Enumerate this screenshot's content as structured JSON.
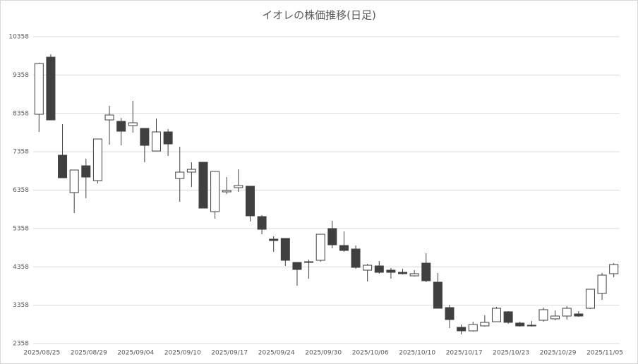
{
  "chart_data": {
    "type": "candlestick",
    "title": "イオレの株価推移(日足)",
    "categories": [
      "2025/08/25",
      null,
      null,
      null,
      "2025/08/29",
      null,
      null,
      null,
      "2025/09/04",
      null,
      null,
      null,
      "2025/09/10",
      null,
      null,
      null,
      "2025/09/17",
      null,
      null,
      null,
      "2025/09/24",
      null,
      null,
      null,
      "2025/09/30",
      null,
      null,
      null,
      "2025/10/06",
      null,
      null,
      null,
      "2025/10/10",
      null,
      null,
      null,
      "2025/10/17",
      null,
      null,
      null,
      "2025/10/23",
      null,
      null,
      null,
      "2025/10/29",
      null,
      null,
      null,
      "2025/11/05",
      null
    ],
    "open": [
      8335,
      9824,
      7268,
      6293,
      6992,
      6606,
      8188,
      8151,
      8040,
      7967,
      7378,
      7875,
      6661,
      6827,
      7084,
      5797,
      6312,
      6422,
      6459,
      5668,
      5080,
      5098,
      4473,
      4473,
      4528,
      5356,
      4914,
      4822,
      4271,
      4381,
      4271,
      4215,
      4123,
      4454,
      3958,
      3296,
      2781,
      2689,
      2818,
      2928,
      3186,
      2891,
      2836,
      2965,
      3002,
      3075,
      3130,
      3278,
      3664,
      4179
    ],
    "high": [
      9680,
      9898,
      8077,
      6882,
      7176,
      7691,
      8556,
      8243,
      8684,
      7967,
      8224,
      7948,
      7489,
      7084,
      7084,
      6845,
      6698,
      6900,
      6459,
      5705,
      5153,
      5098,
      4473,
      4546,
      5208,
      5558,
      5282,
      4914,
      4436,
      4510,
      4326,
      4307,
      4271,
      4712,
      4197,
      3369,
      2855,
      2928,
      3094,
      3314,
      3204,
      2928,
      2946,
      3296,
      3222,
      3333,
      3204,
      3774,
      4197,
      4454
    ],
    "low": [
      7875,
      8188,
      6680,
      5760,
      6146,
      6533,
      7544,
      7525,
      7857,
      7084,
      7378,
      7250,
      6054,
      6441,
      5889,
      5613,
      6257,
      6312,
      5540,
      5208,
      4749,
      4381,
      3866,
      4050,
      4491,
      4841,
      4749,
      4307,
      3976,
      4179,
      4050,
      4160,
      4105,
      3958,
      3278,
      2763,
      2597,
      2671,
      2799,
      2928,
      2873,
      2799,
      2799,
      2928,
      2965,
      2983,
      3057,
      3259,
      3498,
      4087
    ],
    "close": [
      9659,
      8188,
      6680,
      6882,
      6698,
      7691,
      8316,
      7893,
      8114,
      7525,
      7875,
      7562,
      6827,
      6900,
      5889,
      6845,
      6349,
      6477,
      5687,
      5337,
      5043,
      4528,
      4289,
      4491,
      5208,
      4932,
      4785,
      4344,
      4399,
      4215,
      4215,
      4179,
      4179,
      3995,
      3278,
      2983,
      2689,
      2855,
      2910,
      3278,
      2910,
      2818,
      2818,
      3241,
      3075,
      3278,
      3075,
      3774,
      4142,
      4418
    ],
    "up_color": "#ffffff",
    "down_color": "#404040",
    "ylim": [
      2358,
      10358
    ],
    "yticks": [
      2358,
      3358,
      4358,
      5358,
      6358,
      7358,
      8358,
      9358,
      10358
    ],
    "grid": true
  }
}
